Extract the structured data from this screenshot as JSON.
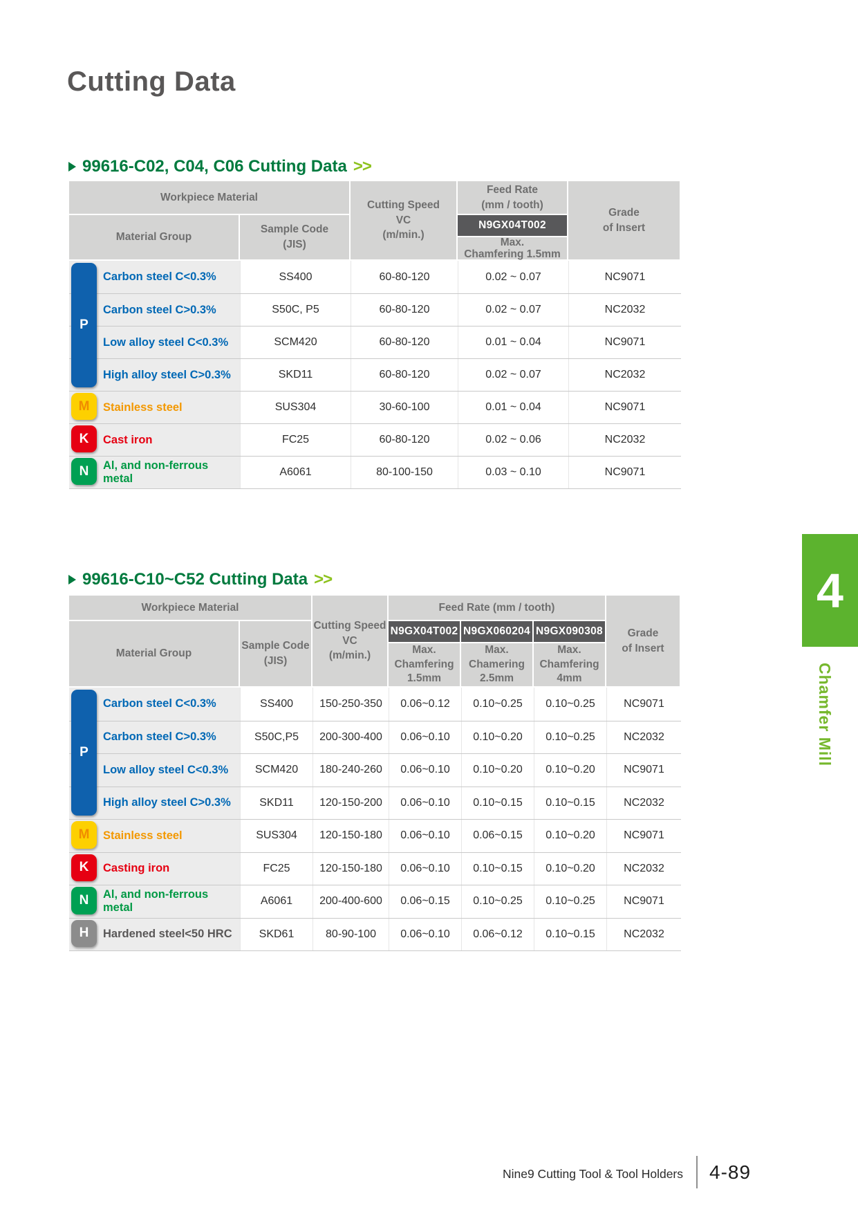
{
  "page": {
    "title": "Cutting Data"
  },
  "side_tab": {
    "number": "4",
    "label": "Chamfer Mill"
  },
  "footer": {
    "brand": "Nine9 Cutting Tool & Tool Holders",
    "page_number": "4-89"
  },
  "colors": {
    "heading_green": "#007a3e",
    "heading_arrow_green": "#8dc21e",
    "side_tab_green": "#5cb32e",
    "side_label_green": "#76b82d",
    "header_bg": "#d4d4d3",
    "badge_bg": "#58585a",
    "material_cell_bg": "#ececec",
    "groups": {
      "P": {
        "tab_bg": "#0f61ad",
        "tab_fg": "#ffffff",
        "text": "#0068b5"
      },
      "M": {
        "tab_bg": "#fdd000",
        "tab_fg": "#f08c00",
        "text": "#f39800"
      },
      "K": {
        "tab_bg": "#e60012",
        "tab_fg": "#ffffff",
        "text": "#e60012"
      },
      "N": {
        "tab_bg": "#00a053",
        "tab_fg": "#ffffff",
        "text": "#009944"
      },
      "H": {
        "tab_bg": "#8c8c8c",
        "tab_fg": "#ffffff",
        "text": "#595757"
      }
    }
  },
  "tables": [
    {
      "heading": "99616-C02, C04, C06 Cutting Data",
      "arrows": ">>",
      "header": {
        "workpiece": "Workpiece Material",
        "material_group": "Material Group",
        "sample_code": [
          "Sample Code",
          "(JIS)"
        ],
        "cutting_speed": [
          "Cutting Speed",
          "VC",
          "(m/min.)"
        ],
        "feed_rate": [
          "Feed Rate",
          "(mm / tooth)"
        ],
        "inserts": [
          {
            "code": "N9GX04T002",
            "sub": [
              "Max.",
              "Chamfering 1.5mm"
            ]
          }
        ],
        "grade": [
          "Grade",
          "of Insert"
        ]
      },
      "groups": [
        {
          "letter": "P",
          "rows": 4
        },
        {
          "letter": "M",
          "rows": 1
        },
        {
          "letter": "K",
          "rows": 1
        },
        {
          "letter": "N",
          "rows": 1
        }
      ],
      "rows": [
        {
          "group": "P",
          "material": "Carbon steel C<0.3%",
          "sample": "SS400",
          "speed": "60-80-120",
          "feeds": [
            "0.02 ~ 0.07"
          ],
          "grade": "NC9071"
        },
        {
          "group": "P",
          "material": "Carbon steel C>0.3%",
          "sample": "S50C, P5",
          "speed": "60-80-120",
          "feeds": [
            "0.02 ~ 0.07"
          ],
          "grade": "NC2032"
        },
        {
          "group": "P",
          "material": "Low alloy steel C<0.3%",
          "sample": "SCM420",
          "speed": "60-80-120",
          "feeds": [
            "0.01 ~ 0.04"
          ],
          "grade": "NC9071"
        },
        {
          "group": "P",
          "material": "High alloy steel C>0.3%",
          "sample": "SKD11",
          "speed": "60-80-120",
          "feeds": [
            "0.02 ~ 0.07"
          ],
          "grade": "NC2032"
        },
        {
          "group": "M",
          "material": "Stainless steel",
          "sample": "SUS304",
          "speed": "30-60-100",
          "feeds": [
            "0.01 ~ 0.04"
          ],
          "grade": "NC9071"
        },
        {
          "group": "K",
          "material": "Cast iron",
          "sample": "FC25",
          "speed": "60-80-120",
          "feeds": [
            "0.02 ~ 0.06"
          ],
          "grade": "NC2032"
        },
        {
          "group": "N",
          "material": "Al, and non-ferrous metal",
          "sample": "A6061",
          "speed": "80-100-150",
          "feeds": [
            "0.03 ~ 0.10"
          ],
          "grade": "NC9071"
        }
      ]
    },
    {
      "heading": "99616-C10~C52 Cutting Data",
      "arrows": ">>",
      "header": {
        "workpiece": "Workpiece Material",
        "material_group": "Material Group",
        "sample_code": [
          "Sample Code",
          "(JIS)"
        ],
        "cutting_speed": [
          "Cutting Speed",
          "VC",
          "(m/min.)"
        ],
        "feed_rate": "Feed Rate (mm / tooth)",
        "inserts": [
          {
            "code": "N9GX04T002",
            "sub": [
              "Max.",
              "Chamfering",
              "1.5mm"
            ]
          },
          {
            "code": "N9GX060204",
            "sub": [
              "Max.",
              "Chamering",
              "2.5mm"
            ]
          },
          {
            "code": "N9GX090308",
            "sub": [
              "Max.",
              "Chamfering",
              "4mm"
            ]
          }
        ],
        "grade": [
          "Grade",
          "of Insert"
        ]
      },
      "groups": [
        {
          "letter": "P",
          "rows": 4
        },
        {
          "letter": "M",
          "rows": 1
        },
        {
          "letter": "K",
          "rows": 1
        },
        {
          "letter": "N",
          "rows": 1
        },
        {
          "letter": "H",
          "rows": 1
        }
      ],
      "rows": [
        {
          "group": "P",
          "material": "Carbon steel C<0.3%",
          "sample": "SS400",
          "speed": "150-250-350",
          "feeds": [
            "0.06~0.12",
            "0.10~0.25",
            "0.10~0.25"
          ],
          "grade": "NC9071"
        },
        {
          "group": "P",
          "material": "Carbon steel C>0.3%",
          "sample": "S50C,P5",
          "speed": "200-300-400",
          "feeds": [
            "0.06~0.10",
            "0.10~0.20",
            "0.10~0.25"
          ],
          "grade": "NC2032"
        },
        {
          "group": "P",
          "material": "Low alloy steel C<0.3%",
          "sample": "SCM420",
          "speed": "180-240-260",
          "feeds": [
            "0.06~0.10",
            "0.10~0.20",
            "0.10~0.20"
          ],
          "grade": "NC9071"
        },
        {
          "group": "P",
          "material": "High alloy steel C>0.3%",
          "sample": "SKD11",
          "speed": "120-150-200",
          "feeds": [
            "0.06~0.10",
            "0.10~0.15",
            "0.10~0.15"
          ],
          "grade": "NC2032"
        },
        {
          "group": "M",
          "material": "Stainless steel",
          "sample": "SUS304",
          "speed": "120-150-180",
          "feeds": [
            "0.06~0.10",
            "0.06~0.15",
            "0.10~0.20"
          ],
          "grade": "NC9071"
        },
        {
          "group": "K",
          "material": "Casting iron",
          "sample": "FC25",
          "speed": "120-150-180",
          "feeds": [
            "0.06~0.10",
            "0.10~0.15",
            "0.10~0.20"
          ],
          "grade": "NC2032"
        },
        {
          "group": "N",
          "material": "Al, and non-ferrous metal",
          "sample": "A6061",
          "speed": "200-400-600",
          "feeds": [
            "0.06~0.15",
            "0.10~0.25",
            "0.10~0.25"
          ],
          "grade": "NC9071"
        },
        {
          "group": "H",
          "material": "Hardened steel<50 HRC",
          "sample": "SKD61",
          "speed": "80-90-100",
          "feeds": [
            "0.06~0.10",
            "0.06~0.12",
            "0.10~0.15"
          ],
          "grade": "NC2032"
        }
      ]
    }
  ]
}
